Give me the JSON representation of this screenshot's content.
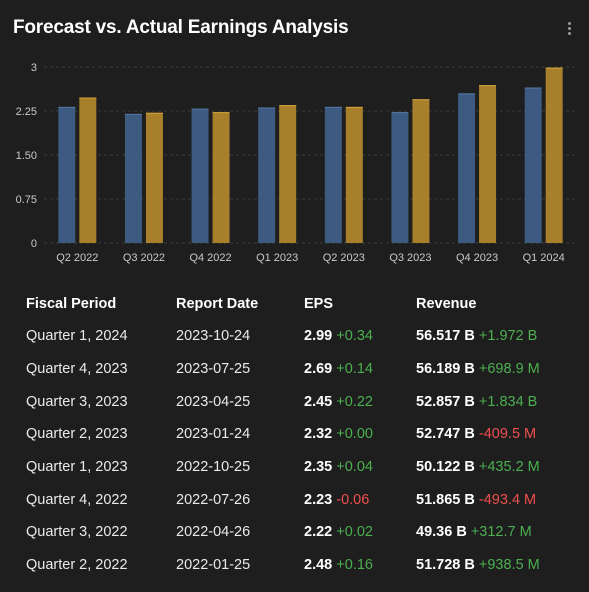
{
  "title": "Forecast vs. Actual Earnings Analysis",
  "colors": {
    "forecast": "#3d5a80",
    "actual": "#a8802c",
    "positive": "#4caf50",
    "negative": "#ef4f4f"
  },
  "chart_data": {
    "type": "bar",
    "categories": [
      "Q2 2022",
      "Q3 2022",
      "Q4 2022",
      "Q1 2023",
      "Q2 2023",
      "Q3 2023",
      "Q4 2023",
      "Q1 2024"
    ],
    "series": [
      {
        "values": [
          2.32,
          2.2,
          2.29,
          2.31,
          2.32,
          2.23,
          2.55,
          2.65
        ]
      },
      {
        "values": [
          2.48,
          2.22,
          2.23,
          2.35,
          2.32,
          2.45,
          2.69,
          2.99
        ]
      }
    ],
    "yticks": [
      "0",
      "0.75",
      "1.50",
      "2.25",
      "3"
    ],
    "ylim": [
      0,
      3
    ],
    "grid": true
  },
  "table": {
    "headers": [
      "Fiscal Period",
      "Report Date",
      "EPS",
      "Revenue"
    ],
    "rows": [
      {
        "period": "Quarter 1, 2024",
        "date": "2023-10-24",
        "eps": "2.99",
        "eps_change": "+0.34",
        "eps_sign": "pos",
        "revenue": "56.517 B",
        "rev_change": "+1.972 B",
        "rev_sign": "pos"
      },
      {
        "period": "Quarter 4, 2023",
        "date": "2023-07-25",
        "eps": "2.69",
        "eps_change": "+0.14",
        "eps_sign": "pos",
        "revenue": "56.189 B",
        "rev_change": "+698.9 M",
        "rev_sign": "pos"
      },
      {
        "period": "Quarter 3, 2023",
        "date": "2023-04-25",
        "eps": "2.45",
        "eps_change": "+0.22",
        "eps_sign": "pos",
        "revenue": "52.857 B",
        "rev_change": "+1.834 B",
        "rev_sign": "pos"
      },
      {
        "period": "Quarter 2, 2023",
        "date": "2023-01-24",
        "eps": "2.32",
        "eps_change": "+0.00",
        "eps_sign": "pos",
        "revenue": "52.747 B",
        "rev_change": "-409.5 M",
        "rev_sign": "neg"
      },
      {
        "period": "Quarter 1, 2023",
        "date": "2022-10-25",
        "eps": "2.35",
        "eps_change": "+0.04",
        "eps_sign": "pos",
        "revenue": "50.122 B",
        "rev_change": "+435.2 M",
        "rev_sign": "pos"
      },
      {
        "period": "Quarter 4, 2022",
        "date": "2022-07-26",
        "eps": "2.23",
        "eps_change": "-0.06",
        "eps_sign": "neg",
        "revenue": "51.865 B",
        "rev_change": "-493.4 M",
        "rev_sign": "neg"
      },
      {
        "period": "Quarter 3, 2022",
        "date": "2022-04-26",
        "eps": "2.22",
        "eps_change": "+0.02",
        "eps_sign": "pos",
        "revenue": "49.36 B",
        "rev_change": "+312.7 M",
        "rev_sign": "pos"
      },
      {
        "period": "Quarter 2, 2022",
        "date": "2022-01-25",
        "eps": "2.48",
        "eps_change": "+0.16",
        "eps_sign": "pos",
        "revenue": "51.728 B",
        "rev_change": "+938.5 M",
        "rev_sign": "pos"
      }
    ]
  }
}
